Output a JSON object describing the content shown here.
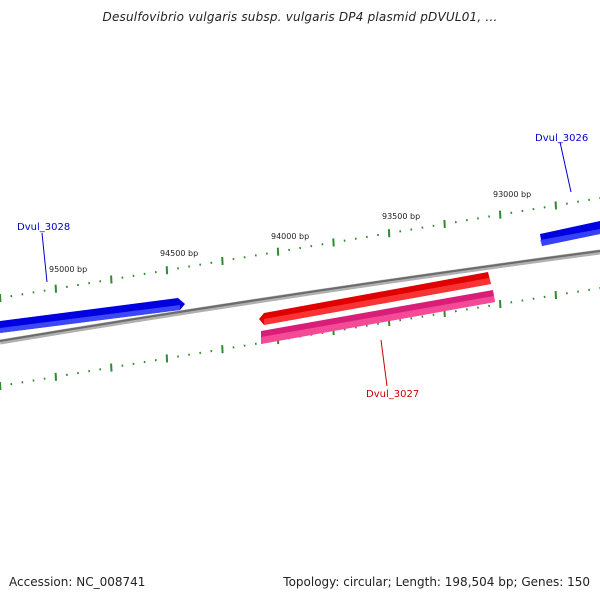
{
  "title": "Desulfovibrio vulgaris subsp. vulgaris DP4 plasmid pDVUL01, ...",
  "footer": {
    "accession": "Accession: NC_008741",
    "summary": "Topology: circular; Length: 198,504 bp; Genes: 150"
  },
  "scale_labels": [
    "93000 bp",
    "93500 bp",
    "94000 bp",
    "94500 bp",
    "95000 bp"
  ],
  "genes": [
    {
      "id": "Dvul_3026",
      "strand": "forward",
      "color": "#0000e0"
    },
    {
      "id": "Dvul_3027",
      "strand": "reverse",
      "color": "#e00000"
    },
    {
      "id": "Dvul_3028",
      "strand": "forward",
      "color": "#0000e0"
    }
  ],
  "colors": {
    "backbone": "#777777",
    "tick": "#2e8b2e",
    "forward_gene": "#0000e0",
    "reverse_gene": "#e00000",
    "feature_pink": "#e8307a",
    "forward_label": "#0000cc",
    "reverse_label": "#cc0000"
  }
}
